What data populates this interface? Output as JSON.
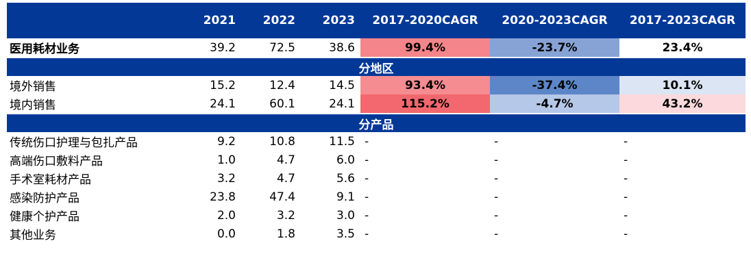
{
  "chart_data": {
    "type": "table",
    "columns": [
      "",
      "2021",
      "2022",
      "2023",
      "2017-2020CAGR",
      "2020-2023CAGR",
      "2017-2023CAGR"
    ],
    "rows": [
      {
        "kind": "data",
        "bold": true,
        "label": "医用耗材业务",
        "values": [
          "39.2",
          "72.5",
          "38.6"
        ],
        "cagr": [
          {
            "text": "99.4%",
            "value": 99.4,
            "color": "#f4858a"
          },
          {
            "text": "-23.7%",
            "value": -23.7,
            "color": "#87a3d6"
          },
          {
            "text": "23.4%",
            "value": 23.4,
            "color": "#ffffff"
          }
        ]
      },
      {
        "kind": "section",
        "label": "分地区"
      },
      {
        "kind": "data",
        "bold": false,
        "label": "境外销售",
        "values": [
          "15.2",
          "12.4",
          "14.5"
        ],
        "cagr": [
          {
            "text": "93.4%",
            "value": 93.4,
            "color": "#f58c91"
          },
          {
            "text": "-37.4%",
            "value": -37.4,
            "color": "#5d86c8"
          },
          {
            "text": "10.1%",
            "value": 10.1,
            "color": "#dbe5f3"
          }
        ]
      },
      {
        "kind": "data",
        "bold": false,
        "label": "境内销售",
        "values": [
          "24.1",
          "60.1",
          "24.1"
        ],
        "cagr": [
          {
            "text": "115.2%",
            "value": 115.2,
            "color": "#f2686e"
          },
          {
            "text": "-4.7%",
            "value": -4.7,
            "color": "#b6c8e8"
          },
          {
            "text": "43.2%",
            "value": 43.2,
            "color": "#fbd9dc"
          }
        ]
      },
      {
        "kind": "section",
        "label": "分产品"
      },
      {
        "kind": "data",
        "bold": false,
        "label": "传统伤口护理与包扎产品",
        "values": [
          "9.2",
          "10.8",
          "11.5"
        ],
        "dashes": [
          "-",
          "-",
          "-"
        ]
      },
      {
        "kind": "data",
        "bold": false,
        "label": "高端伤口敷料产品",
        "values": [
          "1.0",
          "4.7",
          "6.0"
        ],
        "dashes": [
          "-",
          "-",
          "-"
        ]
      },
      {
        "kind": "data",
        "bold": false,
        "label": "手术室耗材产品",
        "values": [
          "3.2",
          "4.7",
          "5.6"
        ],
        "dashes": [
          "-",
          "-",
          "-"
        ]
      },
      {
        "kind": "data",
        "bold": false,
        "label": "感染防护产品",
        "values": [
          "23.8",
          "47.4",
          "9.1"
        ],
        "dashes": [
          "-",
          "-",
          "-"
        ]
      },
      {
        "kind": "data",
        "bold": false,
        "label": "健康个护产品",
        "values": [
          "2.0",
          "3.2",
          "3.0"
        ],
        "dashes": [
          "-",
          "-",
          "-"
        ]
      },
      {
        "kind": "data",
        "bold": false,
        "label": "其他业务",
        "values": [
          "0.0",
          "1.8",
          "3.5"
        ],
        "dashes": [
          "-",
          "-",
          "-"
        ]
      }
    ]
  },
  "colors": {
    "header_bg": "#033897",
    "header_text": "#ffffff"
  }
}
